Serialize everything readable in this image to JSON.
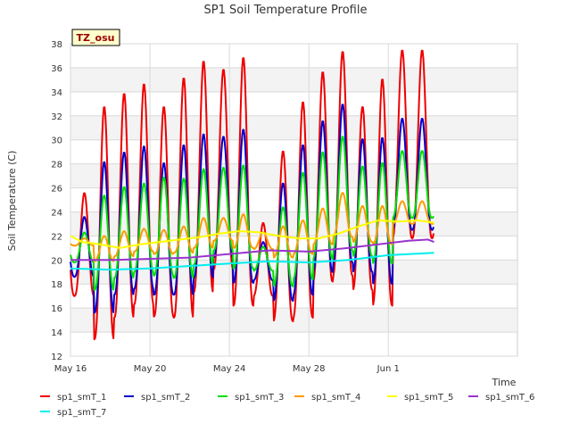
{
  "chart_data": {
    "type": "line",
    "title": "SP1 Soil Temperature Profile",
    "xlabel": "Time",
    "ylabel": "Soil Temperature (C)",
    "badge": "TZ_osu",
    "x_unit": "days",
    "x_start": "May 16",
    "xlim": [
      0,
      22.5
    ],
    "ylim": [
      12,
      38
    ],
    "x_ticks": [
      {
        "x": 0,
        "label": "May 16"
      },
      {
        "x": 4,
        "label": "May 20"
      },
      {
        "x": 8,
        "label": "May 24"
      },
      {
        "x": 12,
        "label": "May 28"
      },
      {
        "x": 16,
        "label": "Jun 1"
      }
    ],
    "y_ticks": [
      12,
      14,
      16,
      18,
      20,
      22,
      24,
      26,
      28,
      30,
      32,
      34,
      36,
      38
    ],
    "grid": true,
    "legend_position": "bottom",
    "series": [
      {
        "name": "sp1_smT_1",
        "color": "#ee0000",
        "peaks": [
          25.6,
          32.8,
          33.9,
          34.7,
          32.8,
          35.2,
          36.6,
          35.9,
          36.9,
          23.1,
          29.1,
          33.2,
          35.7,
          37.4,
          32.8,
          35.1,
          37.5
        ],
        "troughs": [
          17.0,
          13.4,
          15.2,
          16.3,
          15.3,
          15.2,
          17.3,
          19.2,
          16.2,
          17.0,
          14.9,
          15.2,
          18.2,
          18.7,
          17.5,
          16.2,
          21.8
        ]
      },
      {
        "name": "sp1_smT_2",
        "color": "#0000cc",
        "peaks": [
          23.6,
          28.2,
          29.0,
          29.5,
          28.1,
          29.6,
          30.5,
          30.3,
          30.9,
          21.5,
          26.4,
          29.6,
          31.6,
          33.0,
          30.1,
          30.2,
          31.8
        ],
        "troughs": [
          18.6,
          15.6,
          17.1,
          17.6,
          17.1,
          17.1,
          18.5,
          20.2,
          18.1,
          18.3,
          16.6,
          17.1,
          19.0,
          19.8,
          19.0,
          18.0,
          22.5
        ]
      },
      {
        "name": "sp1_smT_3",
        "color": "#00dd00",
        "peaks": [
          22.3,
          25.4,
          26.1,
          26.4,
          26.9,
          26.8,
          27.6,
          27.7,
          27.9,
          21.1,
          24.4,
          27.3,
          29.0,
          30.3,
          27.8,
          28.1,
          29.1
        ],
        "troughs": [
          19.8,
          17.5,
          18.5,
          19.0,
          18.7,
          18.5,
          19.6,
          20.8,
          19.3,
          19.1,
          17.8,
          18.4,
          20.1,
          20.8,
          20.3,
          19.7,
          23.5
        ]
      },
      {
        "name": "sp1_smT_4",
        "color": "#ff9900",
        "peaks": [
          21.8,
          22.0,
          22.4,
          22.6,
          22.5,
          22.8,
          23.5,
          23.5,
          23.8,
          22.3,
          22.8,
          23.3,
          24.3,
          25.6,
          24.5,
          24.5,
          24.9
        ],
        "troughs": [
          21.2,
          19.9,
          20.3,
          20.7,
          20.5,
          20.6,
          21.0,
          21.6,
          21.0,
          20.9,
          20.2,
          20.5,
          21.3,
          21.9,
          21.5,
          21.3,
          23.0
        ]
      },
      {
        "name": "sp1_smT_5",
        "color": "#ffff00",
        "points": [
          [
            0,
            22.0
          ],
          [
            0.6,
            21.5
          ],
          [
            1.5,
            21.3
          ],
          [
            2.5,
            21.0
          ],
          [
            3.5,
            21.3
          ],
          [
            4.5,
            21.5
          ],
          [
            5.5,
            21.7
          ],
          [
            6.5,
            21.9
          ],
          [
            7.5,
            22.2
          ],
          [
            8.5,
            22.4
          ],
          [
            9.5,
            22.3
          ],
          [
            10.5,
            22.0
          ],
          [
            11.5,
            21.8
          ],
          [
            12.5,
            21.8
          ],
          [
            13.5,
            22.2
          ],
          [
            14.5,
            22.8
          ],
          [
            15.5,
            23.3
          ],
          [
            16.5,
            23.2
          ],
          [
            17.5,
            23.3
          ],
          [
            18.3,
            23.1
          ]
        ]
      },
      {
        "name": "sp1_smT_6",
        "color": "#9933cc",
        "points": [
          [
            0,
            20.0
          ],
          [
            2,
            20.0
          ],
          [
            4,
            20.1
          ],
          [
            6,
            20.2
          ],
          [
            8,
            20.5
          ],
          [
            10,
            20.8
          ],
          [
            12,
            20.7
          ],
          [
            14,
            21.0
          ],
          [
            15.5,
            21.3
          ],
          [
            17,
            21.6
          ],
          [
            18,
            21.7
          ],
          [
            18.3,
            21.5
          ]
        ]
      },
      {
        "name": "sp1_smT_7",
        "color": "#00eeee",
        "points": [
          [
            0,
            19.3
          ],
          [
            2,
            19.2
          ],
          [
            4,
            19.3
          ],
          [
            6,
            19.5
          ],
          [
            8,
            19.7
          ],
          [
            10,
            19.9
          ],
          [
            12,
            19.8
          ],
          [
            14,
            20.0
          ],
          [
            16,
            20.4
          ],
          [
            18.3,
            20.6
          ]
        ]
      }
    ]
  }
}
